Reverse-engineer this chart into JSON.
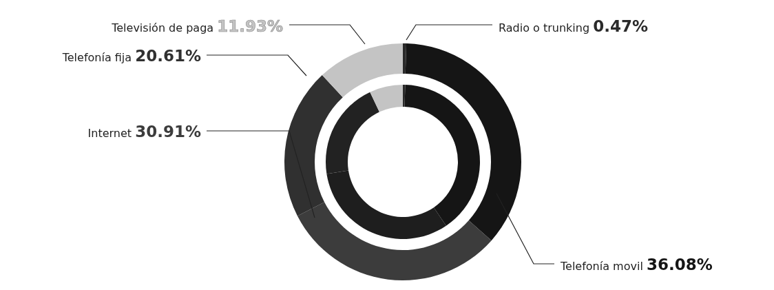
{
  "chart_data": {
    "type": "donut",
    "categories": [
      "Radio o trunking",
      "Telefonía movil",
      "Internet",
      "Telefonía fija",
      "Televisión de paga"
    ],
    "series": [
      {
        "values": [
          0.47,
          36.08,
          30.91,
          20.61,
          11.93
        ],
        "value_labels": [
          "0.47%",
          "36.08%",
          "30.91%",
          "20.61%",
          "11.93%"
        ],
        "colors": [
          "#2a2a2a",
          "#151515",
          "#3c3c3c",
          "#303030",
          "#c4c4c4"
        ]
      },
      {
        "values": [
          0.5,
          40,
          32,
          20.5,
          7
        ],
        "colors": [
          "#2a2a2a",
          "#151515",
          "#1e1e1e",
          "#222222",
          "#c4c4c4"
        ]
      }
    ]
  }
}
